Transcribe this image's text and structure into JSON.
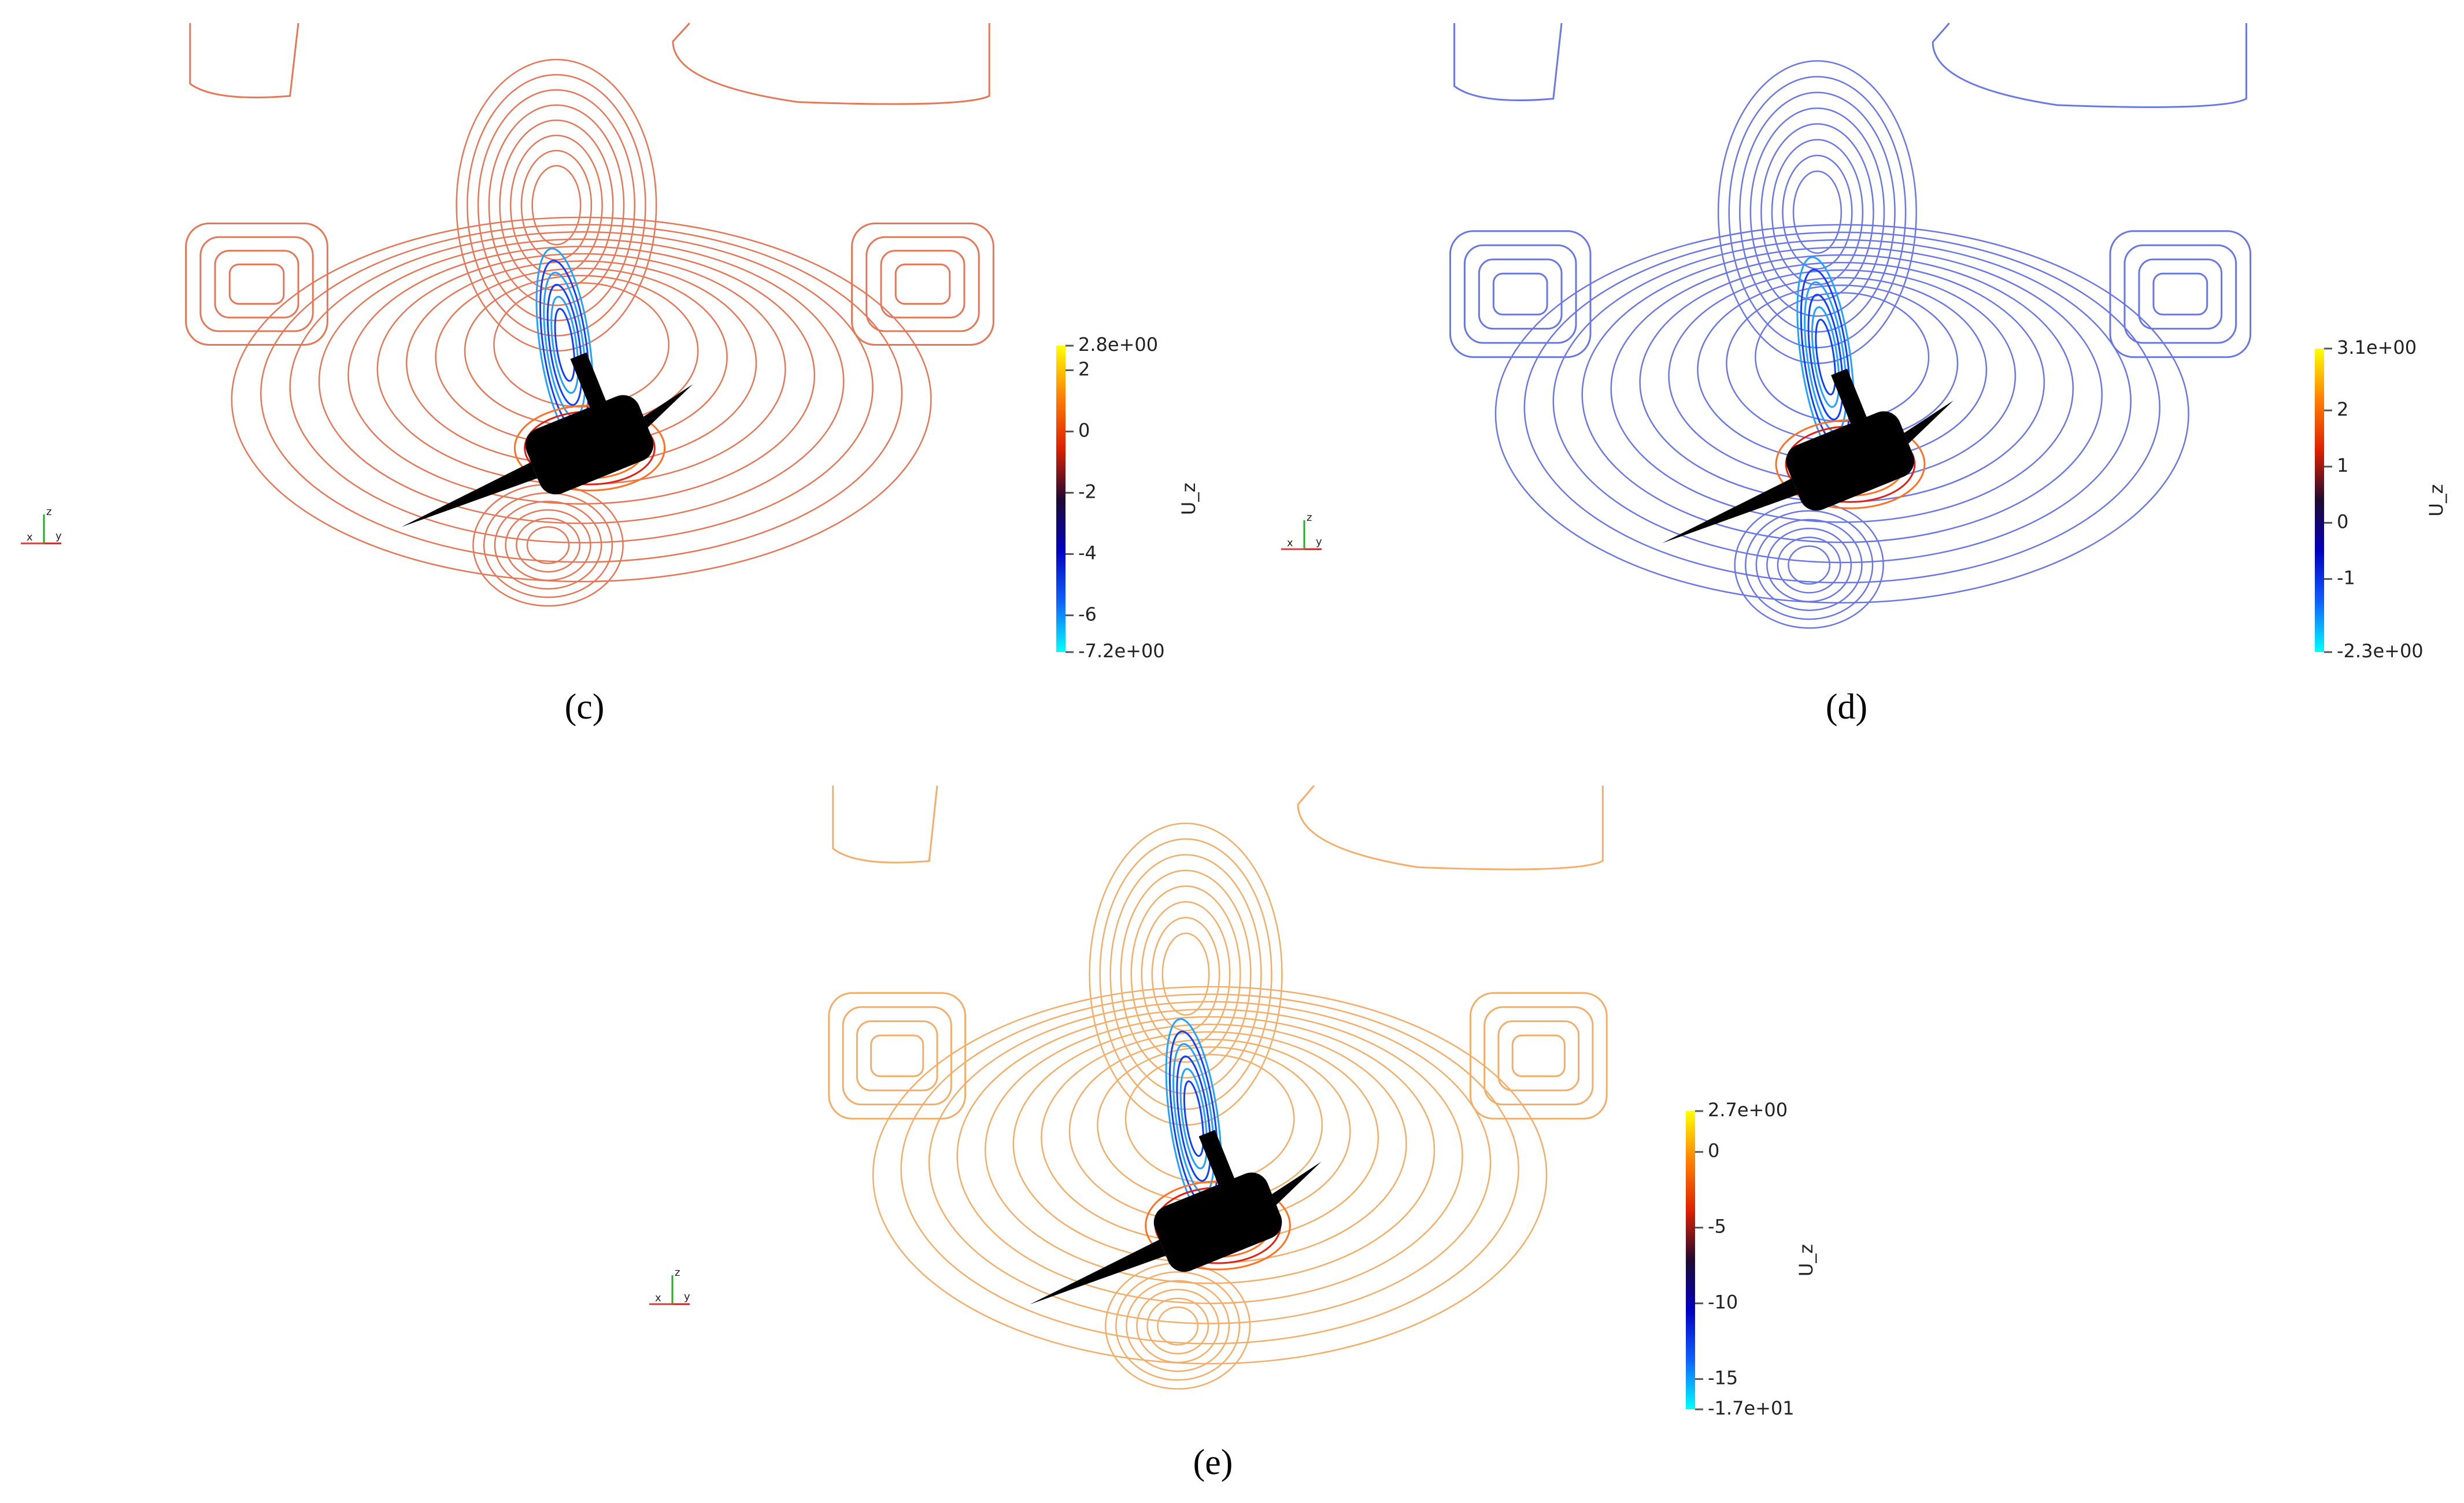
{
  "chart_data": [
    {
      "type": "contour",
      "caption": "(c)",
      "colorbar_label": "U_z",
      "line_color": "#e0603a",
      "colormap": [
        "#00ffff",
        "#1060ff",
        "#0000c0",
        "#200a30",
        "#e02000",
        "#ff8000",
        "#ffff00"
      ],
      "clim": [
        -7.2,
        2.8
      ],
      "cticks": [
        {
          "value": 2.8,
          "label": "2.8e+00"
        },
        2,
        0,
        -2,
        -4,
        -6,
        {
          "value": -7.2,
          "label": "-7.2e+00"
        }
      ],
      "triad": [
        "x",
        "y",
        "z"
      ]
    },
    {
      "type": "contour",
      "caption": "(d)",
      "colorbar_label": "U_z",
      "line_color": "#5060e0",
      "colormap": [
        "#00ffff",
        "#1060ff",
        "#0000c0",
        "#200a30",
        "#e02000",
        "#ff8000",
        "#ffff00"
      ],
      "clim": [
        -2.3,
        3.1
      ],
      "cticks": [
        {
          "value": 3.1,
          "label": "3.1e+00"
        },
        2,
        1,
        0,
        -1,
        {
          "value": -2.3,
          "label": "-2.3e+00"
        }
      ],
      "triad": [
        "x",
        "y",
        "z"
      ]
    },
    {
      "type": "contour",
      "caption": "(e)",
      "colorbar_label": "U_z",
      "line_color": "#f0a050",
      "colormap": [
        "#00ffff",
        "#1060ff",
        "#0000c0",
        "#200a30",
        "#e02000",
        "#ff8000",
        "#ffff00"
      ],
      "clim": [
        -17,
        2.7
      ],
      "cticks": [
        {
          "value": 2.7,
          "label": "2.7e+00"
        },
        0,
        -5,
        -10,
        -15,
        {
          "value": -17,
          "label": "-1.7e+01"
        }
      ],
      "triad": [
        "x",
        "y",
        "z"
      ]
    }
  ]
}
